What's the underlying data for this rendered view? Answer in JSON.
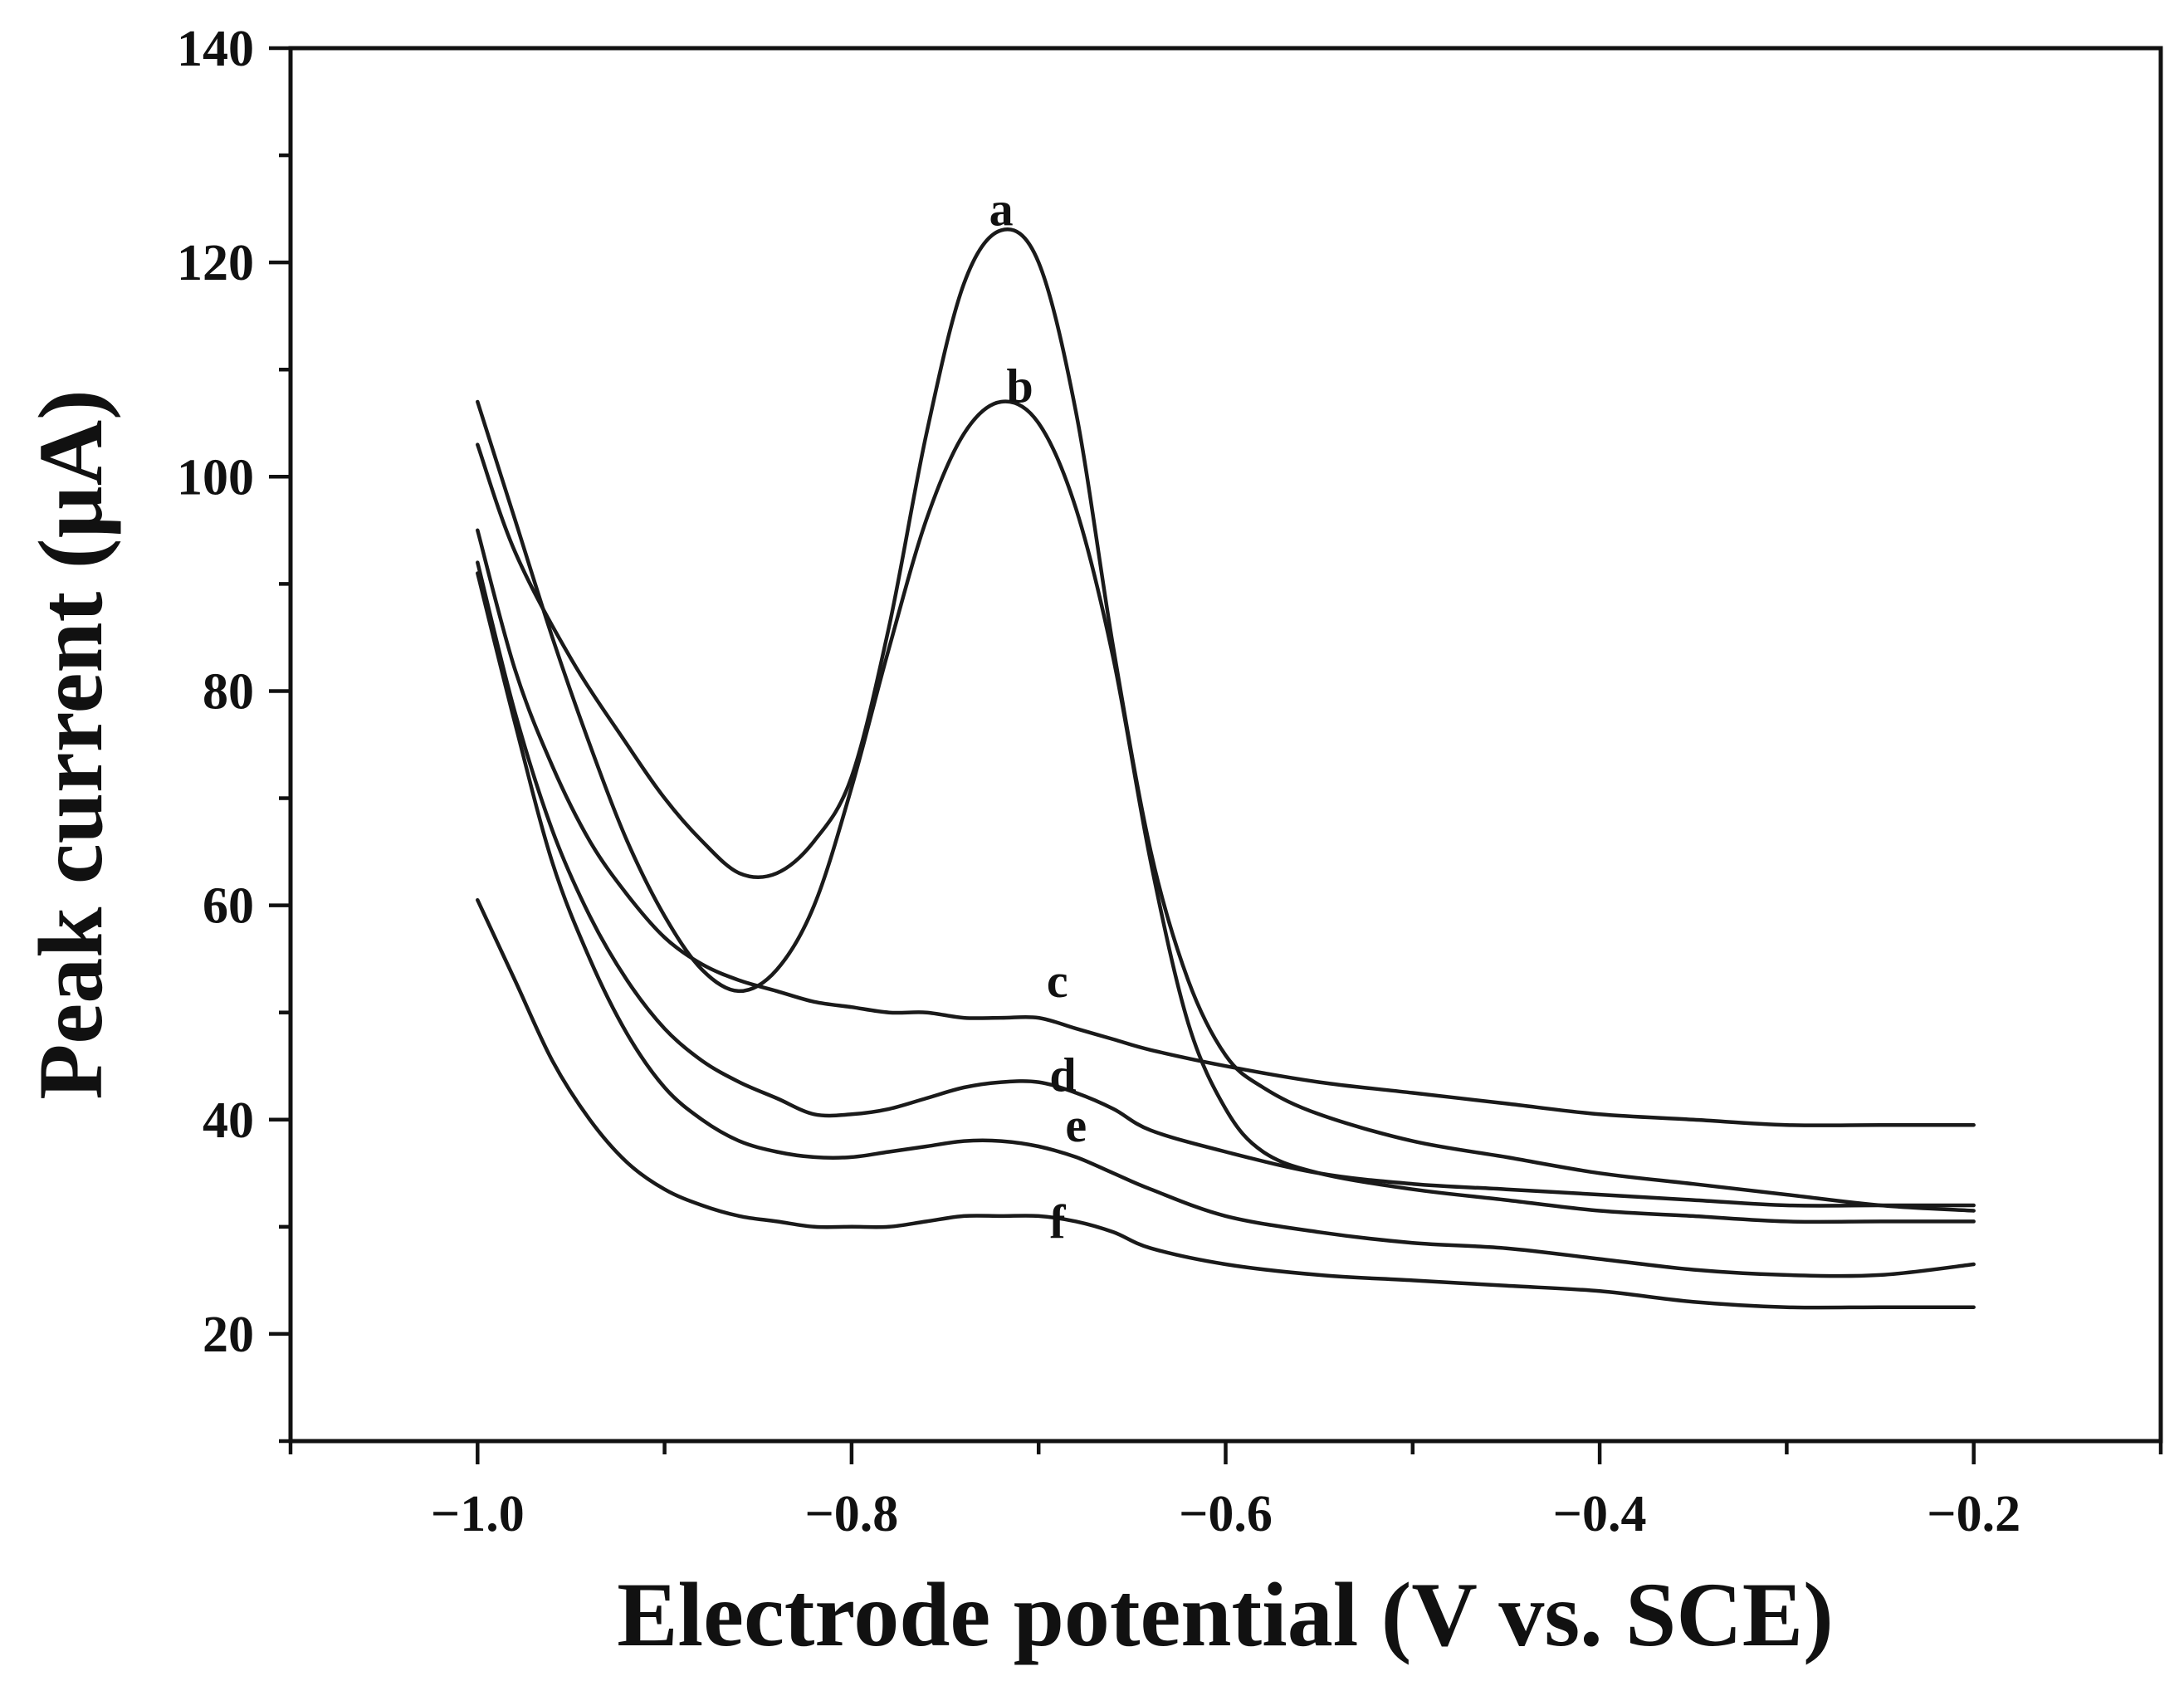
{
  "chart_data": {
    "type": "line",
    "title": "",
    "xlabel": "Electrode potential (V vs. SCE)",
    "ylabel": "Peak current (µA)",
    "xlim": [
      -1.1,
      -0.1
    ],
    "ylim": [
      10,
      140
    ],
    "x_major_ticks": [
      -1.0,
      -0.8,
      -0.6,
      -0.4,
      -0.2
    ],
    "x_minor_ticks": [
      -1.1,
      -0.9,
      -0.7,
      -0.5,
      -0.3,
      -0.1
    ],
    "x_tick_labels": [
      "−1.0",
      "−0.8",
      "−0.6",
      "−0.4",
      "−0.2"
    ],
    "y_major_ticks": [
      20,
      40,
      60,
      80,
      100,
      120,
      140
    ],
    "y_minor_ticks": [
      10,
      30,
      50,
      70,
      90,
      110,
      130
    ],
    "y_tick_labels": [
      "20",
      "40",
      "60",
      "80",
      "100",
      "120",
      "140"
    ],
    "grid": false,
    "series": [
      {
        "name": "a",
        "label_at": [
          -0.72,
          125
        ],
        "x": [
          -1.0,
          -0.98,
          -0.95,
          -0.92,
          -0.9,
          -0.88,
          -0.86,
          -0.84,
          -0.82,
          -0.8,
          -0.78,
          -0.76,
          -0.74,
          -0.72,
          -0.7,
          -0.68,
          -0.66,
          -0.64,
          -0.62,
          -0.6,
          -0.58,
          -0.55,
          -0.5,
          -0.45,
          -0.4,
          -0.35,
          -0.3,
          -0.25,
          -0.2
        ],
        "y": [
          103,
          93,
          83,
          75,
          70,
          66,
          63,
          63,
          66,
          72,
          86,
          104,
          118,
          123,
          120,
          106,
          84,
          65,
          53,
          46,
          43,
          40.5,
          38,
          36.5,
          35,
          34,
          33,
          32,
          31.5
        ]
      },
      {
        "name": "b",
        "label_at": [
          -0.71,
          108.5
        ],
        "x": [
          -1.0,
          -0.98,
          -0.96,
          -0.94,
          -0.92,
          -0.9,
          -0.88,
          -0.86,
          -0.84,
          -0.82,
          -0.8,
          -0.78,
          -0.76,
          -0.74,
          -0.72,
          -0.7,
          -0.68,
          -0.66,
          -0.64,
          -0.62,
          -0.6,
          -0.58,
          -0.55,
          -0.5,
          -0.45,
          -0.4,
          -0.35,
          -0.3,
          -0.25,
          -0.2
        ],
        "y": [
          107,
          96,
          85,
          75,
          66,
          59,
          54,
          52,
          54,
          60,
          71,
          84,
          96,
          104,
          107,
          105,
          97,
          83,
          64,
          49,
          41,
          37,
          35,
          33.5,
          32.5,
          31.5,
          31,
          30.5,
          30.5,
          30.5
        ]
      },
      {
        "name": "c",
        "label_at": [
          -0.69,
          53
        ],
        "x": [
          -1.0,
          -0.98,
          -0.96,
          -0.94,
          -0.92,
          -0.9,
          -0.88,
          -0.86,
          -0.84,
          -0.82,
          -0.8,
          -0.78,
          -0.76,
          -0.74,
          -0.72,
          -0.7,
          -0.68,
          -0.66,
          -0.64,
          -0.6,
          -0.55,
          -0.5,
          -0.45,
          -0.4,
          -0.35,
          -0.3,
          -0.25,
          -0.2
        ],
        "y": [
          95,
          82,
          73,
          66,
          61,
          57,
          54.5,
          53,
          52,
          51,
          50.5,
          50,
          50,
          49.5,
          49.5,
          49.5,
          48.5,
          47.5,
          46.5,
          45,
          43.5,
          42.5,
          41.5,
          40.5,
          40,
          39.5,
          39.5,
          39.5
        ]
      },
      {
        "name": "d",
        "label_at": [
          -0.687,
          44.2
        ],
        "x": [
          -1.0,
          -0.98,
          -0.96,
          -0.94,
          -0.92,
          -0.9,
          -0.88,
          -0.86,
          -0.84,
          -0.82,
          -0.8,
          -0.78,
          -0.76,
          -0.74,
          -0.72,
          -0.7,
          -0.68,
          -0.66,
          -0.64,
          -0.6,
          -0.55,
          -0.5,
          -0.45,
          -0.4,
          -0.35,
          -0.3,
          -0.25,
          -0.2
        ],
        "y": [
          92,
          78,
          67,
          59,
          53,
          48.5,
          45.5,
          43.5,
          42,
          40.5,
          40.5,
          41,
          42,
          43,
          43.5,
          43.5,
          42.5,
          41,
          39,
          37,
          35,
          34,
          33.5,
          33,
          32.5,
          32,
          32,
          32
        ]
      },
      {
        "name": "e",
        "label_at": [
          -0.68,
          39.5
        ],
        "x": [
          -1.0,
          -0.98,
          -0.96,
          -0.94,
          -0.92,
          -0.9,
          -0.88,
          -0.86,
          -0.84,
          -0.82,
          -0.8,
          -0.78,
          -0.76,
          -0.74,
          -0.72,
          -0.7,
          -0.68,
          -0.66,
          -0.64,
          -0.6,
          -0.55,
          -0.5,
          -0.45,
          -0.4,
          -0.35,
          -0.3,
          -0.25,
          -0.2
        ],
        "y": [
          91,
          77,
          64,
          55,
          48,
          43,
          40,
          38,
          37,
          36.5,
          36.5,
          37,
          37.5,
          38,
          38,
          37.5,
          36.5,
          35,
          33.5,
          31,
          29.5,
          28.5,
          28,
          27,
          26,
          25.5,
          25.5,
          26.5
        ]
      },
      {
        "name": "f",
        "label_at": [
          -0.69,
          30.5
        ],
        "x": [
          -1.0,
          -0.98,
          -0.96,
          -0.94,
          -0.92,
          -0.9,
          -0.88,
          -0.86,
          -0.84,
          -0.82,
          -0.8,
          -0.78,
          -0.76,
          -0.74,
          -0.72,
          -0.7,
          -0.68,
          -0.66,
          -0.64,
          -0.6,
          -0.55,
          -0.5,
          -0.45,
          -0.4,
          -0.35,
          -0.3,
          -0.25,
          -0.2
        ],
        "y": [
          60.5,
          53,
          45.5,
          40,
          36,
          33.5,
          32,
          31,
          30.5,
          30,
          30,
          30,
          30.5,
          31,
          31,
          31,
          30.5,
          29.5,
          28,
          26.5,
          25.5,
          25,
          24.5,
          24,
          23,
          22.5,
          22.5,
          22.5
        ]
      }
    ]
  }
}
